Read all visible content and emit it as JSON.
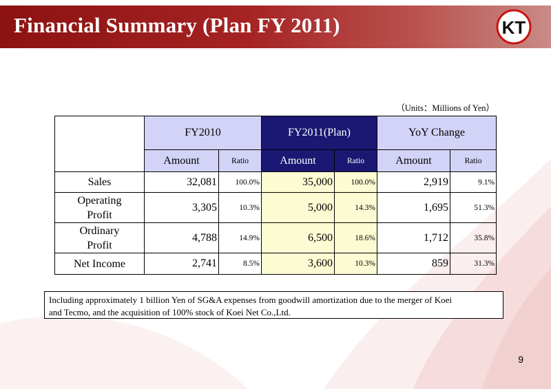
{
  "slide": {
    "title": "Financial Summary (Plan FY 2011)",
    "logo_text": "KT",
    "units": "（Units：Millions of Yen）",
    "page_number": "9"
  },
  "table": {
    "group_headers": [
      "FY2010",
      "FY2011(Plan)",
      "YoY Change"
    ],
    "sub_headers": [
      "Amount",
      "Ratio",
      "Amount",
      "Ratio",
      "Amount",
      "Ratio"
    ],
    "rows": [
      {
        "label_line1": "Sales",
        "label_line2": "",
        "values": [
          "32,081",
          "100.0%",
          "35,000",
          "100.0%",
          "2,919",
          "9.1%"
        ]
      },
      {
        "label_line1": "Operating",
        "label_line2": "Profit",
        "values": [
          "3,305",
          "10.3%",
          "5,000",
          "14.3%",
          "1,695",
          "51.3%"
        ]
      },
      {
        "label_line1": "Ordinary",
        "label_line2": "Profit",
        "values": [
          "4,788",
          "14.9%",
          "6,500",
          "18.6%",
          "1,712",
          "35.8%"
        ]
      },
      {
        "label_line1": "Net Income",
        "label_line2": "",
        "values": [
          "2,741",
          "8.5%",
          "3,600",
          "10.3%",
          "859",
          "31.3%"
        ]
      }
    ]
  },
  "note": {
    "line1": "Including approximately 1 billion Yen of SG&A expenses from goodwill amortization due to the merger of Koei",
    "line2": "and Tecmo, and the acquisition of 100% stock of Koei Net Co.,Ltd."
  },
  "colors": {
    "header_red": "#a52323",
    "navy_header": "#1a1872",
    "lavender_header": "#d2d3f6",
    "highlight_yellow": "#fdfbd3"
  }
}
